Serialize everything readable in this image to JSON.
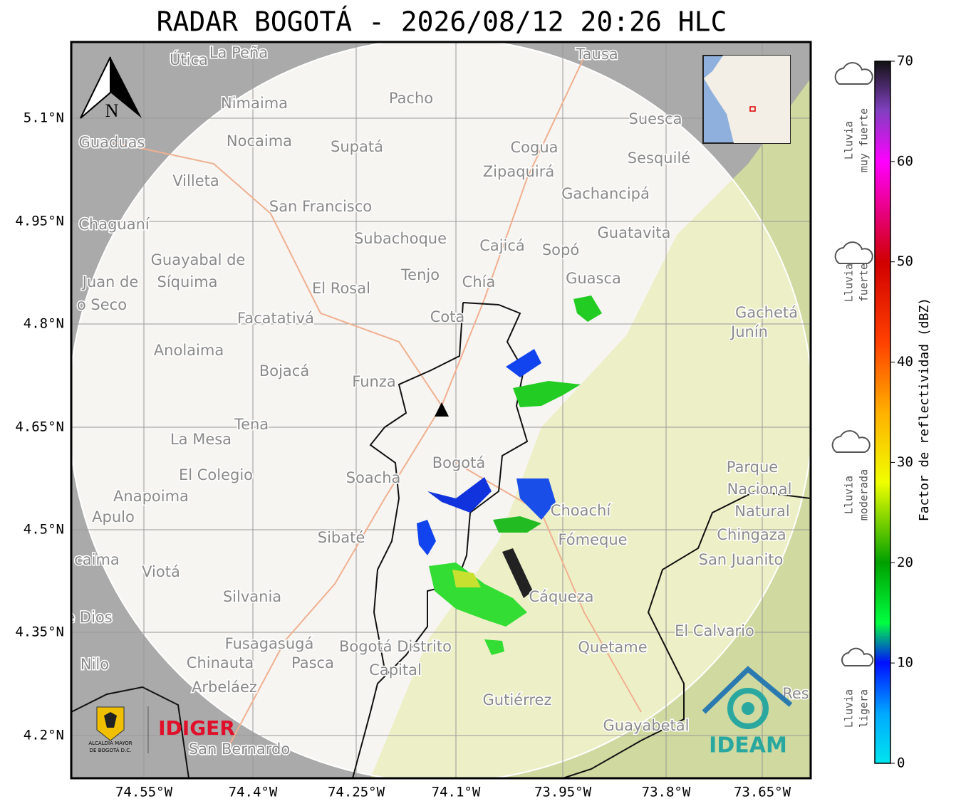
{
  "title": "RADAR BOGOTÁ - 2026/08/12 20:26 HLC",
  "map": {
    "north": "N",
    "lat_labels": [
      "5.1°N",
      "4.95°N",
      "4.8°N",
      "4.65°N",
      "4.5°N",
      "4.35°N",
      "4.2°N"
    ],
    "lon_labels": [
      "74.55°W",
      "74.4°W",
      "74.25°W",
      "74.1°W",
      "73.95°W",
      "73.8°W",
      "73.65°W"
    ],
    "places": [
      "Útica",
      "La Peña",
      "Tausa",
      "Pacho",
      "Nimaima",
      "Suesca",
      "Guaduas",
      "Nocaima",
      "Supatá",
      "Cogua",
      "Sesquilé",
      "Zipaquirá",
      "Villeta",
      "Gachancipá",
      "San Francisco",
      "Chaguaní",
      "Guatavita",
      "Subachoque",
      "Cajicá",
      "Sopó",
      "Guayabal de",
      "Síquima",
      "Juan de",
      "o Seco",
      "Tenjo",
      "Chía",
      "El Rosal",
      "Guasca",
      "Facatativá",
      "Gachetá",
      "Junín",
      "Cota",
      "Anolaima",
      "Bojacá",
      "Funza",
      "Tena",
      "La Mesa",
      "El Colegio",
      "Soacha",
      "Bogotá",
      "Parque",
      "Nacional",
      "Natural",
      "Chingaza",
      "Anapoima",
      "Apulo",
      "Choachí",
      "Fómeque",
      "San Juanito",
      "Sibaté",
      "caima",
      "Viotá",
      "Silvania",
      "Cáqueza",
      "e Dios",
      "El Calvario",
      "Fusagasugá",
      "Bogotá Distrito",
      "Capital",
      "Quetame",
      "Nilo",
      "Chinauta",
      "Pasca",
      "Arbeláez",
      "Gutiérrez",
      "Guayabetal",
      "San Bernardo",
      "Res"
    ]
  },
  "colorbar": {
    "label": "Factor de reflectividad (dBZ)",
    "range": [
      0,
      70
    ],
    "ticks": [
      0,
      10,
      20,
      30,
      40,
      50,
      60,
      70
    ]
  },
  "intensity": [
    [
      "Lluvia",
      "muy fuerte"
    ],
    [
      "Lluvia",
      "fuerte"
    ],
    [
      "Lluvia",
      "moderada"
    ],
    [
      "Lluvia",
      "ligera"
    ]
  ],
  "logos": {
    "alcaldia": [
      "ALCALDÍA MAYOR",
      "DE BOGOTÁ D.C."
    ],
    "idiger": "IDIGER",
    "ideam": "IDEAM"
  }
}
